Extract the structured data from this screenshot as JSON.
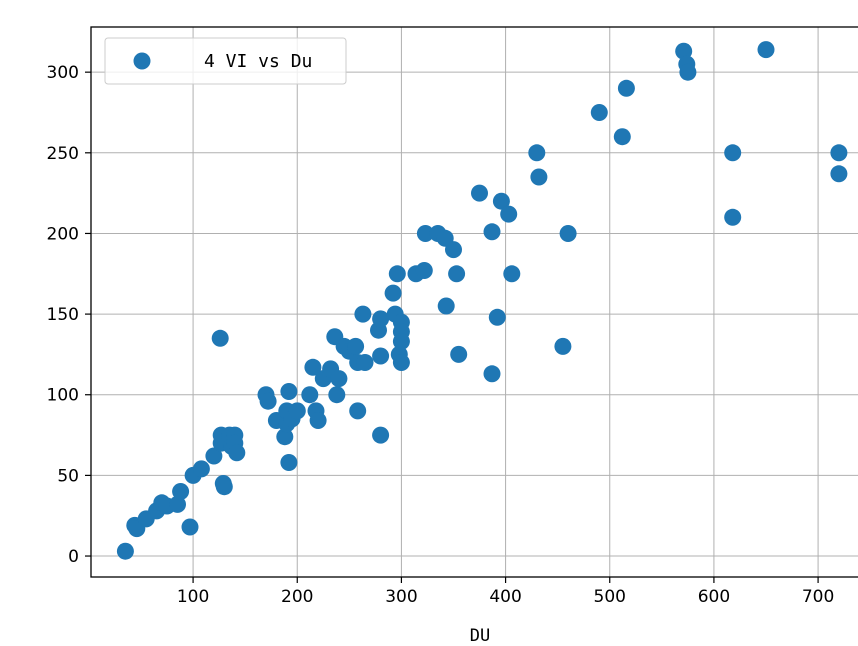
{
  "chart_data": {
    "type": "scatter",
    "title": "",
    "xlabel": "DU",
    "ylabel": "",
    "xlim": [
      2,
      746
    ],
    "ylim": [
      -13,
      328
    ],
    "xticks": [
      100,
      200,
      300,
      400,
      500,
      600,
      700
    ],
    "yticks": [
      0,
      50,
      100,
      150,
      200,
      250,
      300
    ],
    "grid": true,
    "legend_position": "top-left",
    "series": [
      {
        "name": "4 VI vs Du",
        "color": "#1f77b4",
        "points": [
          [
            35,
            3
          ],
          [
            44,
            19
          ],
          [
            46,
            17
          ],
          [
            55,
            23
          ],
          [
            65,
            28
          ],
          [
            70,
            33
          ],
          [
            75,
            31
          ],
          [
            85,
            32
          ],
          [
            88,
            40
          ],
          [
            97,
            18
          ],
          [
            100,
            50
          ],
          [
            108,
            54
          ],
          [
            120,
            62
          ],
          [
            126,
            135
          ],
          [
            127,
            75
          ],
          [
            127,
            70
          ],
          [
            129,
            45
          ],
          [
            130,
            43
          ],
          [
            135,
            75
          ],
          [
            137,
            68
          ],
          [
            140,
            75
          ],
          [
            140,
            70
          ],
          [
            142,
            64
          ],
          [
            170,
            100
          ],
          [
            172,
            96
          ],
          [
            180,
            84
          ],
          [
            188,
            74
          ],
          [
            190,
            82
          ],
          [
            190,
            90
          ],
          [
            192,
            102
          ],
          [
            192,
            58
          ],
          [
            195,
            85
          ],
          [
            200,
            90
          ],
          [
            212,
            100
          ],
          [
            215,
            117
          ],
          [
            218,
            90
          ],
          [
            220,
            84
          ],
          [
            225,
            110
          ],
          [
            232,
            116
          ],
          [
            236,
            136
          ],
          [
            238,
            100
          ],
          [
            240,
            110
          ],
          [
            245,
            130
          ],
          [
            250,
            127
          ],
          [
            256,
            130
          ],
          [
            258,
            90
          ],
          [
            258,
            120
          ],
          [
            263,
            150
          ],
          [
            265,
            120
          ],
          [
            278,
            140
          ],
          [
            280,
            147
          ],
          [
            280,
            124
          ],
          [
            280,
            75
          ],
          [
            292,
            163
          ],
          [
            294,
            150
          ],
          [
            296,
            175
          ],
          [
            298,
            125
          ],
          [
            300,
            145
          ],
          [
            300,
            139
          ],
          [
            300,
            133
          ],
          [
            300,
            120
          ],
          [
            314,
            175
          ],
          [
            322,
            177
          ],
          [
            323,
            200
          ],
          [
            335,
            200
          ],
          [
            342,
            197
          ],
          [
            343,
            155
          ],
          [
            350,
            190
          ],
          [
            353,
            175
          ],
          [
            355,
            125
          ],
          [
            375,
            225
          ],
          [
            387,
            201
          ],
          [
            387,
            113
          ],
          [
            392,
            148
          ],
          [
            396,
            220
          ],
          [
            403,
            212
          ],
          [
            406,
            175
          ],
          [
            430,
            250
          ],
          [
            432,
            235
          ],
          [
            455,
            130
          ],
          [
            460,
            200
          ],
          [
            490,
            275
          ],
          [
            512,
            260
          ],
          [
            516,
            290
          ],
          [
            571,
            313
          ],
          [
            574,
            305
          ],
          [
            575,
            300
          ],
          [
            618,
            250
          ],
          [
            618,
            210
          ],
          [
            650,
            314
          ],
          [
            720,
            250
          ],
          [
            720,
            237
          ]
        ]
      }
    ]
  }
}
